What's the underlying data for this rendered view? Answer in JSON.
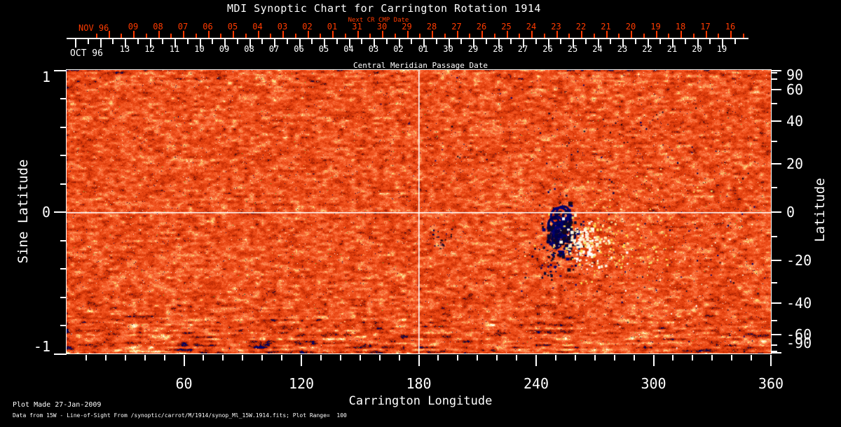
{
  "title": "MDI Synoptic Chart for Carrington Rotation 1914",
  "top_axis": {
    "next_cr_label": "Next CR CMP Date",
    "next_cr_month": "NOV 96",
    "next_cr_dates": [
      "09",
      "08",
      "07",
      "06",
      "05",
      "04",
      "03",
      "02",
      "01",
      "31",
      "30",
      "29",
      "28",
      "27",
      "26",
      "25",
      "24",
      "23",
      "22",
      "21",
      "20",
      "19",
      "18",
      "17",
      "16"
    ],
    "cmp_month": "OCT 96",
    "cmp_dates": [
      "13",
      "12",
      "11",
      "10",
      "09",
      "08",
      "07",
      "06",
      "05",
      "04",
      "03",
      "02",
      "01",
      "30",
      "29",
      "28",
      "27",
      "26",
      "25",
      "24",
      "23",
      "22",
      "21",
      "20",
      "19"
    ],
    "cmp_axis_label": "Central Meridian Passage Date"
  },
  "axes": {
    "left": {
      "title": "Sine Latitude",
      "tick_labels": [
        "1",
        "0",
        "-1"
      ],
      "tick_values": [
        1,
        0,
        -1
      ]
    },
    "right": {
      "title": "Latitude",
      "tick_labels": [
        "90",
        "60",
        "40",
        "20",
        "0",
        "-20",
        "-40",
        "-60",
        "-90"
      ],
      "tick_values": [
        90,
        60,
        40,
        20,
        0,
        -20,
        -40,
        -60,
        -90
      ]
    },
    "bottom": {
      "title": "Carrington Longitude",
      "tick_labels": [
        "60",
        "120",
        "180",
        "240",
        "300",
        "360"
      ],
      "tick_values": [
        60,
        120,
        180,
        240,
        300,
        360
      ]
    }
  },
  "footer": {
    "line1": "Plot Made 27-Jan-2009",
    "line2": "Data from 15W - Line-of-Sight From /synoptic/carrot/M/1914/synop_Ml_15W.1914.fits; Plot Range=  100"
  },
  "colors": {
    "background": "#000000",
    "text": "#ffffff",
    "accent_red": "#ff3b00",
    "quiet_sun_orange": "#f04e1a",
    "negative_polarity": "#000050",
    "positive_polarity": "#ffffff",
    "plage_yellow": "#ffd84a"
  },
  "chart_data": {
    "type": "heatmap",
    "title": "MDI Synoptic Chart for Carrington Rotation 1914",
    "xlabel": "Carrington Longitude",
    "ylabel_left": "Sine Latitude",
    "ylabel_right": "Latitude",
    "xlim": [
      0,
      360
    ],
    "ylim_sine_latitude": [
      -1,
      1
    ],
    "x_ticks": [
      60,
      120,
      180,
      240,
      300,
      360
    ],
    "x_minor_tick_step_deg": 10,
    "left_y_ticks_sine": [
      1,
      0,
      -1
    ],
    "left_y_minor_tick_step_sine": 0.2,
    "right_y_ticks_deg": [
      90,
      60,
      40,
      20,
      0,
      -20,
      -40,
      -60,
      -90
    ],
    "right_y_minor_tick_step_deg": 10,
    "grid": "off",
    "reference_lines": {
      "horizontal_at_sine_latitude": 0,
      "vertical_at_longitude_deg": 180
    },
    "plot_range_gauss": 100,
    "colormap_semantics": "orange-red quiet-Sun noise background; strong negative magnetic field rendered dark blue/black; strong positive field rendered yellow/white",
    "top_axis_rows": [
      {
        "label": "Next CR CMP Date",
        "month": "NOV 96",
        "dates": [
          "09",
          "08",
          "07",
          "06",
          "05",
          "04",
          "03",
          "02",
          "01",
          "31",
          "30",
          "29",
          "28",
          "27",
          "26",
          "25",
          "24",
          "23",
          "22",
          "21",
          "20",
          "19",
          "18",
          "17",
          "16"
        ]
      },
      {
        "label": "Central Meridian Passage Date",
        "month": "OCT 96",
        "dates": [
          "13",
          "12",
          "11",
          "10",
          "09",
          "08",
          "07",
          "06",
          "05",
          "04",
          "03",
          "02",
          "01",
          "30",
          "29",
          "28",
          "27",
          "26",
          "25",
          "24",
          "23",
          "22",
          "21",
          "20",
          "19"
        ]
      }
    ],
    "features": [
      {
        "name": "bipolar-active-region",
        "longitude_deg": [
          238,
          278
        ],
        "latitude_deg": [
          -25,
          -3
        ],
        "negative_polarity_center_longitude_deg": 247,
        "positive_polarity_center_longitude_deg": 262,
        "description": "dominant active region just south of the equator: dark blue negative-polarity ringed cluster with adjacent bright white positive-polarity patch and yellow plage extending east to ~310 deg"
      },
      {
        "name": "scattered-specks",
        "longitude_deg": [
          150,
          350
        ],
        "latitude_deg": [
          -40,
          45
        ],
        "description": "sparse small dark-blue and yellow/white speckles over the mid-latitudes, denser east of longitude 200"
      },
      {
        "name": "streaked-quiet-sun",
        "longitude_deg": [
          0,
          360
        ],
        "latitude_deg": [
          -90,
          -55
        ],
        "description": "horizontally streaked darker red noise near the southern (bottom) edge of the map"
      }
    ]
  }
}
